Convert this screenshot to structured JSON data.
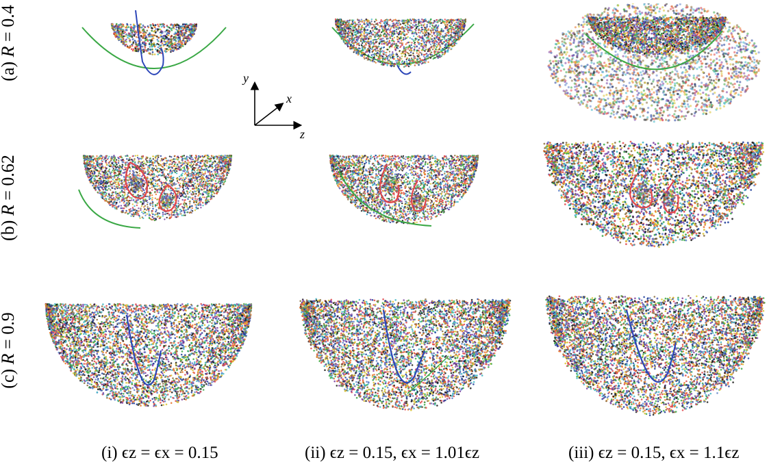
{
  "row_labels": [
    {
      "prefix": "(a)",
      "var": "R",
      "eq": "= 0.4"
    },
    {
      "prefix": "(b)",
      "var": "R",
      "eq": "= 0.62"
    },
    {
      "prefix": "(c)",
      "var": "R",
      "eq": "= 0.9"
    }
  ],
  "col_labels": [
    {
      "prefix": "(i)",
      "text": "ϵz = ϵx = 0.15"
    },
    {
      "prefix": "(ii)",
      "text": "ϵz = 0.15, ϵx = 1.01ϵz"
    },
    {
      "prefix": "(iii)",
      "text": "ϵz = 0.15, ϵx = 1.1ϵz"
    }
  ],
  "axes": {
    "y": "y",
    "x": "x",
    "z": "z"
  },
  "colors": [
    "#1f3d99",
    "#e8742a",
    "#3aa845",
    "#d9c231",
    "#7b3fa0",
    "#1a1a1a",
    "#3fb6c4",
    "#e0464b",
    "#8a6d3b",
    "#5e80c9"
  ]
}
